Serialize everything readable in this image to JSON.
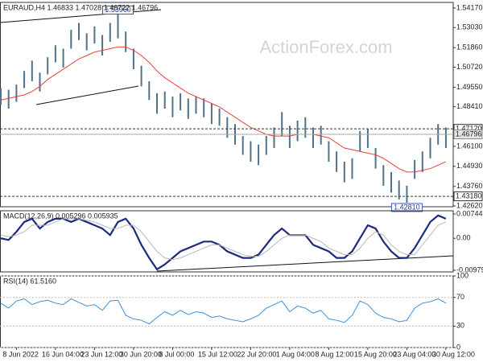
{
  "chart_data": [
    {
      "type": "ohlc",
      "title": "EURAUD,H4 1.46833 1.47028 1.46722 1.46796",
      "watermark": "ActionForex.com",
      "color": "#4f7189",
      "ylim": [
        1.42573,
        1.54499
      ],
      "yticks": [
        {
          "value": 1.5417,
          "label": "1.54170"
        },
        {
          "value": 1.5303,
          "label": "1.53030"
        },
        {
          "value": 1.5186,
          "label": "1.51860"
        },
        {
          "value": 1.5072,
          "label": "1.50720"
        },
        {
          "value": 1.4955,
          "label": "1.49550"
        },
        {
          "value": 1.4841,
          "label": "1.48410"
        },
        {
          "value": 1.461,
          "label": "1.46100"
        },
        {
          "value": 1.4493,
          "label": "1.44930"
        },
        {
          "value": 1.4376,
          "label": "1.43760"
        },
        {
          "value": 1.4262,
          "label": "1.42620"
        }
      ],
      "high": [
        1.495,
        1.494,
        1.497,
        1.505,
        1.511,
        1.504,
        1.513,
        1.52,
        1.518,
        1.529,
        1.533,
        1.527,
        1.531,
        1.526,
        1.533,
        1.5396,
        1.528,
        1.518,
        1.508,
        1.499,
        1.492,
        1.493,
        1.49,
        1.492,
        1.489,
        1.49,
        1.489,
        1.486,
        1.483,
        1.478,
        1.474,
        1.467,
        1.464,
        1.462,
        1.467,
        1.472,
        1.481,
        1.473,
        1.476,
        1.478,
        1.472,
        1.473,
        1.464,
        1.458,
        1.452,
        1.454,
        1.47,
        1.471,
        1.46,
        1.45,
        1.446,
        1.441,
        1.438,
        1.453,
        1.458,
        1.466,
        1.474,
        1.472
      ],
      "low": [
        1.485,
        1.483,
        1.487,
        1.495,
        1.499,
        1.493,
        1.503,
        1.51,
        1.507,
        1.518,
        1.523,
        1.517,
        1.521,
        1.514,
        1.522,
        1.524,
        1.516,
        1.506,
        1.496,
        1.488,
        1.48,
        1.483,
        1.478,
        1.482,
        1.477,
        1.48,
        1.478,
        1.474,
        1.473,
        1.466,
        1.462,
        1.456,
        1.452,
        1.45,
        1.456,
        1.46,
        1.467,
        1.46,
        1.464,
        1.466,
        1.46,
        1.462,
        1.452,
        1.446,
        1.44,
        1.442,
        1.458,
        1.46,
        1.448,
        1.438,
        1.434,
        1.43,
        1.4281,
        1.442,
        1.446,
        1.454,
        1.462,
        1.46
      ],
      "ma": {
        "color": "#e5413b",
        "values": [
          1.488,
          1.489,
          1.49,
          1.491,
          1.493,
          1.496,
          1.5,
          1.503,
          1.506,
          1.509,
          1.512,
          1.514,
          1.516,
          1.517,
          1.518,
          1.519,
          1.519,
          1.517,
          1.514,
          1.51,
          1.505,
          1.501,
          1.498,
          1.495,
          1.492,
          1.49,
          1.488,
          1.486,
          1.484,
          1.481,
          1.478,
          1.475,
          1.472,
          1.47,
          1.468,
          1.467,
          1.467,
          1.467,
          1.468,
          1.468,
          1.468,
          1.467,
          1.466,
          1.463,
          1.46,
          1.459,
          1.458,
          1.457,
          1.456,
          1.454,
          1.451,
          1.448,
          1.446,
          1.446,
          1.447,
          1.448,
          1.45,
          1.452
        ]
      },
      "levels": [
        {
          "value": 1.4712,
          "label": "1.47120"
        },
        {
          "value": 1.4318,
          "label": "1.43180"
        }
      ],
      "last_price": {
        "value": 1.46796,
        "label": "1.46796"
      },
      "annotations": [
        {
          "value": 1.5396,
          "label": "1.53960"
        },
        {
          "value": 1.4281,
          "label": "1.42810"
        }
      ]
    },
    {
      "type": "line",
      "title": "MACD(12,26,9) 0.005296 0.005935",
      "ylim": [
        -0.01028,
        0.00843
      ],
      "yticks": [
        -0.009794,
        {
          "value": 0,
          "label": "0.00"
        },
        0.007441
      ],
      "grid": false,
      "series": [
        {
          "color": "#1c2a80",
          "width": 2.2,
          "values": [
            0.0,
            -0.0005,
            0.002,
            0.005,
            0.006,
            0.003,
            0.005,
            0.006,
            0.006,
            0.005,
            0.006,
            0.005,
            0.004,
            0.003,
            0.001,
            0.005,
            0.006,
            0.003,
            -0.002,
            -0.006,
            -0.0095,
            -0.008,
            -0.006,
            -0.004,
            -0.003,
            -0.002,
            -0.001,
            -0.001,
            -0.002,
            -0.004,
            -0.005,
            -0.006,
            -0.006,
            -0.005,
            -0.002,
            0.001,
            0.003,
            0.001,
            0.001,
            0.001,
            -0.002,
            -0.003,
            -0.004,
            -0.006,
            -0.006,
            -0.004,
            0.0,
            0.004,
            0.003,
            -0.001,
            -0.004,
            -0.006,
            -0.006,
            -0.003,
            0.001,
            0.005,
            0.007,
            0.006
          ]
        },
        {
          "color": "#b8b8b8",
          "width": 1,
          "values": [
            0.001,
            0.0005,
            0.001,
            0.002,
            0.004,
            0.004,
            0.004,
            0.005,
            0.006,
            0.006,
            0.006,
            0.0055,
            0.005,
            0.004,
            0.003,
            0.003,
            0.004,
            0.004,
            0.002,
            -0.001,
            -0.004,
            -0.006,
            -0.0065,
            -0.006,
            -0.005,
            -0.004,
            -0.003,
            -0.002,
            -0.002,
            -0.003,
            -0.004,
            -0.005,
            -0.0055,
            -0.0055,
            -0.004,
            -0.002,
            0.0,
            0.001,
            0.001,
            0.001,
            0.0,
            -0.001,
            -0.003,
            -0.004,
            -0.005,
            -0.005,
            -0.003,
            0.0,
            0.002,
            0.001,
            -0.002,
            -0.004,
            -0.005,
            -0.005,
            -0.002,
            0.001,
            0.004,
            0.005
          ]
        }
      ]
    },
    {
      "type": "line",
      "title": "RSI(14) 61.5160",
      "ylim": [
        0,
        100
      ],
      "yticks": [
        0,
        30,
        70,
        100
      ],
      "grid": true,
      "series": [
        {
          "color": "#3b8fda",
          "width": 1,
          "values": [
            62,
            55,
            65,
            68,
            60,
            64,
            66,
            62,
            60,
            68,
            63,
            58,
            60,
            52,
            65,
            66,
            45,
            40,
            38,
            33,
            42,
            50,
            45,
            52,
            46,
            50,
            48,
            42,
            44,
            40,
            38,
            36,
            40,
            45,
            55,
            60,
            65,
            50,
            58,
            55,
            48,
            52,
            40,
            38,
            35,
            45,
            65,
            60,
            48,
            42,
            40,
            36,
            38,
            55,
            62,
            64,
            68,
            62
          ]
        }
      ],
      "categories": [
        null,
        null,
        "8 Jun 2022",
        null,
        null,
        null,
        null,
        "16 Jun 04:00",
        null,
        null,
        null,
        null,
        "23 Jun 12:00",
        null,
        null,
        null,
        null,
        "30 Jun 20:00",
        null,
        null,
        null,
        null,
        "8 Jul 00:00",
        null,
        null,
        null,
        null,
        "15 Jul 12:00",
        null,
        null,
        null,
        null,
        "22 Jul 20:00",
        null,
        null,
        null,
        null,
        "1 Aug 04:00",
        null,
        null,
        null,
        null,
        "8 Aug 12:00",
        null,
        null,
        null,
        null,
        "15 Aug 20:00",
        null,
        null,
        null,
        null,
        "23 Aug 04:00",
        null,
        null,
        null,
        null,
        "30 Aug 12:00"
      ]
    }
  ]
}
